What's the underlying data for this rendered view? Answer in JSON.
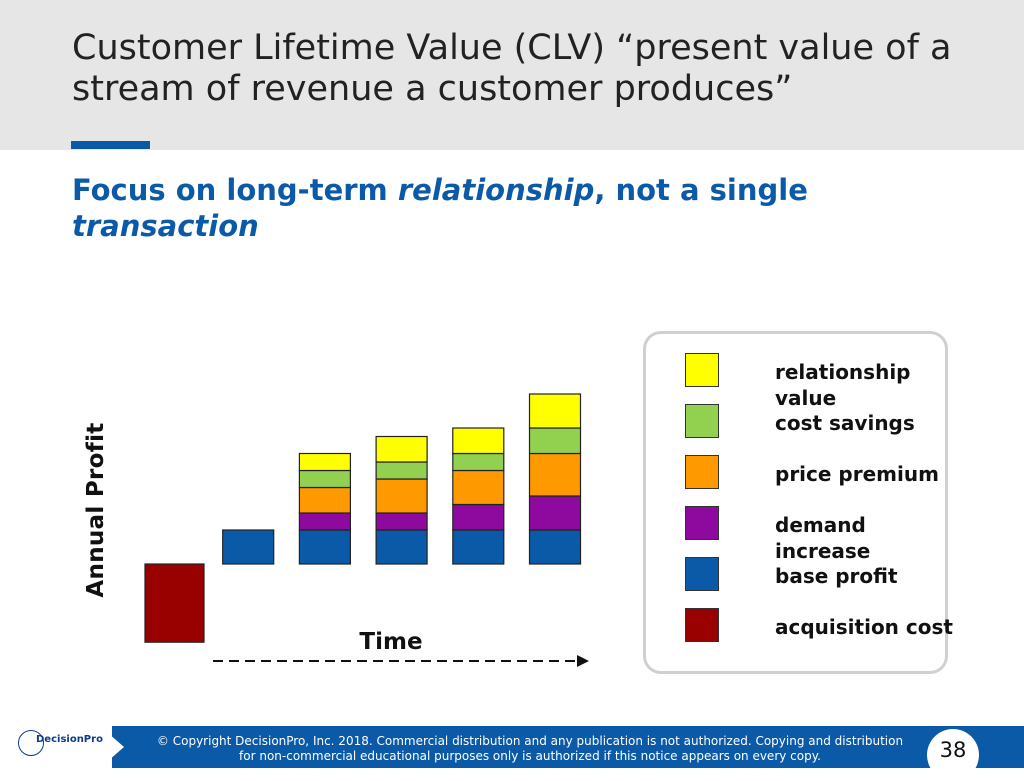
{
  "slide": {
    "title": "Customer Lifetime Value (CLV) “present value of a stream of revenue a customer produces”",
    "subtitle_parts": [
      "Focus on long-term ",
      "relationship",
      ", not a single ",
      "transaction"
    ],
    "page_number": "38"
  },
  "footer": {
    "logo_text": "DecisionPro",
    "copyright_line1": "© Copyright DecisionPro, Inc.  2018. Commercial distribution and any publication is not authorized. Copying and distribution",
    "copyright_line2": "for non-commercial educational purposes only is authorized if this notice appears on every copy."
  },
  "colors": {
    "accent": "#0b5aa8",
    "acquisition cost": "#990000",
    "base profit": "#0b5aa8",
    "demand increase": "#8e0a9e",
    "price premium": "#ff9900",
    "cost savings": "#92d050",
    "relationship value": "#ffff00"
  },
  "chart_data": {
    "type": "bar",
    "stacked": true,
    "xlabel": "Time",
    "ylabel": "Annual Profit",
    "periods": 6,
    "legend_position": "right",
    "series": [
      {
        "name": "acquisition cost",
        "values": [
          -2.3,
          0,
          0,
          0,
          0,
          0
        ]
      },
      {
        "name": "base profit",
        "values": [
          0,
          1,
          1,
          1,
          1,
          1
        ]
      },
      {
        "name": "demand increase",
        "values": [
          0,
          0,
          0.5,
          0.5,
          0.75,
          1
        ]
      },
      {
        "name": "price premium",
        "values": [
          0,
          0,
          0.75,
          1,
          1,
          1.25
        ]
      },
      {
        "name": "cost savings",
        "values": [
          0,
          0,
          0.5,
          0.5,
          0.5,
          0.75
        ]
      },
      {
        "name": "relationship value",
        "values": [
          0,
          0,
          0.5,
          0.75,
          0.75,
          1
        ]
      }
    ],
    "legend": [
      "relationship value",
      "cost savings",
      "price premium",
      "demand increase",
      "base profit",
      "acquisition cost"
    ]
  }
}
